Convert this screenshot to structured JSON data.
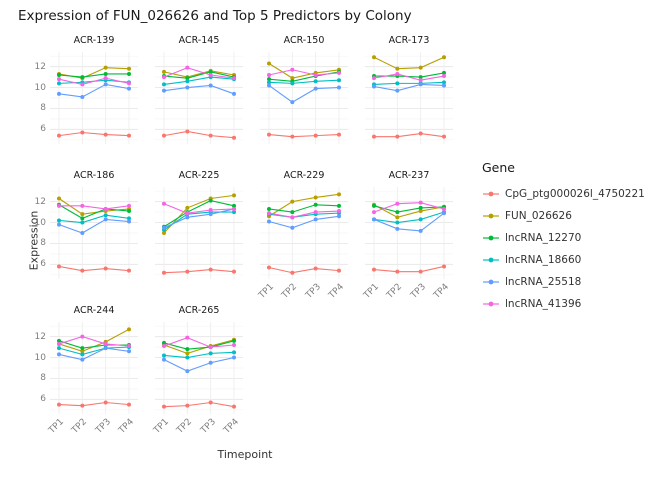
{
  "title": "Expression of FUN_026626 and Top 5 Predictors by Colony",
  "chart_data": {
    "type": "line",
    "x": [
      "TP1",
      "TP2",
      "TP3",
      "TP4"
    ],
    "xlabel": "Timepoint",
    "ylabel": "Expression",
    "ylim": [
      4.6,
      13.4
    ],
    "yticks": [
      6,
      8,
      10,
      12
    ],
    "yticks_minor": [
      5,
      7,
      9,
      11,
      13
    ],
    "legend_title": "Gene",
    "series": [
      {
        "name": "CpG_ptg000026l_4750221",
        "color": "#F8766D"
      },
      {
        "name": "FUN_026626",
        "color": "#B79F00"
      },
      {
        "name": "lncRNA_12270",
        "color": "#00BA38"
      },
      {
        "name": "lncRNA_18660",
        "color": "#00BFC4"
      },
      {
        "name": "lncRNA_25518",
        "color": "#619CFF"
      },
      {
        "name": "lncRNA_41396",
        "color": "#F564E3"
      }
    ],
    "facets": [
      {
        "name": "ACR-139",
        "values": [
          [
            5.4,
            5.7,
            5.5,
            5.4
          ],
          [
            11.3,
            10.9,
            11.9,
            11.8
          ],
          [
            11.2,
            11.0,
            11.3,
            11.3
          ],
          [
            10.4,
            10.5,
            10.7,
            10.5
          ],
          [
            9.4,
            9.1,
            10.3,
            9.9
          ],
          [
            10.8,
            10.3,
            10.9,
            10.4
          ]
        ]
      },
      {
        "name": "ACR-145",
        "values": [
          [
            5.4,
            5.8,
            5.4,
            5.2
          ],
          [
            11.5,
            11.0,
            11.6,
            11.2
          ],
          [
            11.1,
            10.9,
            11.5,
            11.0
          ],
          [
            10.3,
            10.6,
            11.0,
            10.8
          ],
          [
            9.7,
            10.0,
            10.2,
            9.4
          ],
          [
            11.0,
            11.9,
            11.2,
            10.9
          ]
        ]
      },
      {
        "name": "ACR-150",
        "values": [
          [
            5.5,
            5.3,
            5.4,
            5.5
          ],
          [
            12.3,
            10.9,
            11.4,
            11.7
          ],
          [
            10.8,
            10.6,
            11.1,
            11.5
          ],
          [
            10.5,
            10.4,
            10.6,
            10.7
          ],
          [
            10.2,
            8.6,
            9.9,
            10.0
          ],
          [
            11.2,
            11.7,
            11.2,
            11.4
          ]
        ]
      },
      {
        "name": "ACR-173",
        "values": [
          [
            5.3,
            5.3,
            5.6,
            5.3
          ],
          [
            12.9,
            11.8,
            11.9,
            12.9
          ],
          [
            11.1,
            11.1,
            11.0,
            11.4
          ],
          [
            10.3,
            10.4,
            10.4,
            10.5
          ],
          [
            10.1,
            9.7,
            10.3,
            10.2
          ],
          [
            10.9,
            11.3,
            10.7,
            11.1
          ]
        ]
      },
      {
        "name": "ACR-186",
        "values": [
          [
            5.8,
            5.4,
            5.6,
            5.4
          ],
          [
            12.3,
            10.8,
            11.1,
            11.3
          ],
          [
            11.7,
            10.4,
            11.3,
            11.1
          ],
          [
            10.2,
            10.0,
            10.7,
            10.4
          ],
          [
            9.8,
            9.0,
            10.3,
            10.1
          ],
          [
            11.6,
            11.6,
            11.3,
            11.6
          ]
        ]
      },
      {
        "name": "ACR-225",
        "values": [
          [
            5.2,
            5.3,
            5.5,
            5.3
          ],
          [
            9.0,
            11.4,
            12.3,
            12.6
          ],
          [
            9.6,
            11.0,
            12.1,
            11.6
          ],
          [
            9.3,
            10.8,
            11.0,
            11.0
          ],
          [
            9.5,
            10.5,
            10.8,
            11.3
          ],
          [
            11.8,
            10.9,
            11.2,
            11.3
          ]
        ]
      },
      {
        "name": "ACR-229",
        "values": [
          [
            5.7,
            5.2,
            5.6,
            5.4
          ],
          [
            10.6,
            12.0,
            12.4,
            12.7
          ],
          [
            11.3,
            11.0,
            11.7,
            11.6
          ],
          [
            10.8,
            10.5,
            10.8,
            10.9
          ],
          [
            10.1,
            9.5,
            10.3,
            10.6
          ],
          [
            10.9,
            10.5,
            11.0,
            11.1
          ]
        ]
      },
      {
        "name": "ACR-237",
        "values": [
          [
            5.5,
            5.3,
            5.3,
            5.8
          ],
          [
            11.7,
            10.5,
            11.1,
            11.5
          ],
          [
            11.6,
            11.0,
            11.4,
            11.5
          ],
          [
            10.3,
            10.0,
            10.3,
            11.0
          ],
          [
            10.3,
            9.4,
            9.2,
            10.9
          ],
          [
            11.0,
            11.8,
            11.9,
            11.3
          ]
        ]
      },
      {
        "name": "ACR-244",
        "values": [
          [
            5.5,
            5.4,
            5.7,
            5.5
          ],
          [
            11.3,
            10.6,
            11.5,
            12.7
          ],
          [
            11.6,
            10.9,
            11.2,
            11.2
          ],
          [
            10.9,
            10.3,
            10.9,
            11.0
          ],
          [
            10.3,
            9.8,
            10.9,
            10.6
          ],
          [
            11.3,
            12.0,
            11.3,
            11.1
          ]
        ]
      },
      {
        "name": "ACR-265",
        "values": [
          [
            5.3,
            5.4,
            5.7,
            5.3
          ],
          [
            11.2,
            10.4,
            11.1,
            11.7
          ],
          [
            11.4,
            10.8,
            11.0,
            11.6
          ],
          [
            10.2,
            10.0,
            10.4,
            10.5
          ],
          [
            9.8,
            8.7,
            9.5,
            10.0
          ],
          [
            11.1,
            11.9,
            11.0,
            11.2
          ]
        ]
      }
    ]
  }
}
